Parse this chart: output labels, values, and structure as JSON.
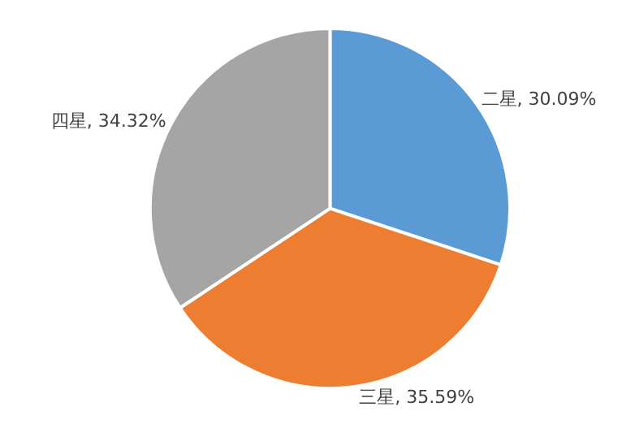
{
  "chart_data": {
    "type": "pie",
    "categories": [
      "二星",
      "三星",
      "四星"
    ],
    "values": [
      30.09,
      35.59,
      34.32
    ],
    "value_labels": [
      "30.09%",
      "35.59%",
      "34.32%"
    ],
    "colors": [
      "#5b9bd5",
      "#ed7d31",
      "#a5a5a5"
    ],
    "legend": false
  }
}
